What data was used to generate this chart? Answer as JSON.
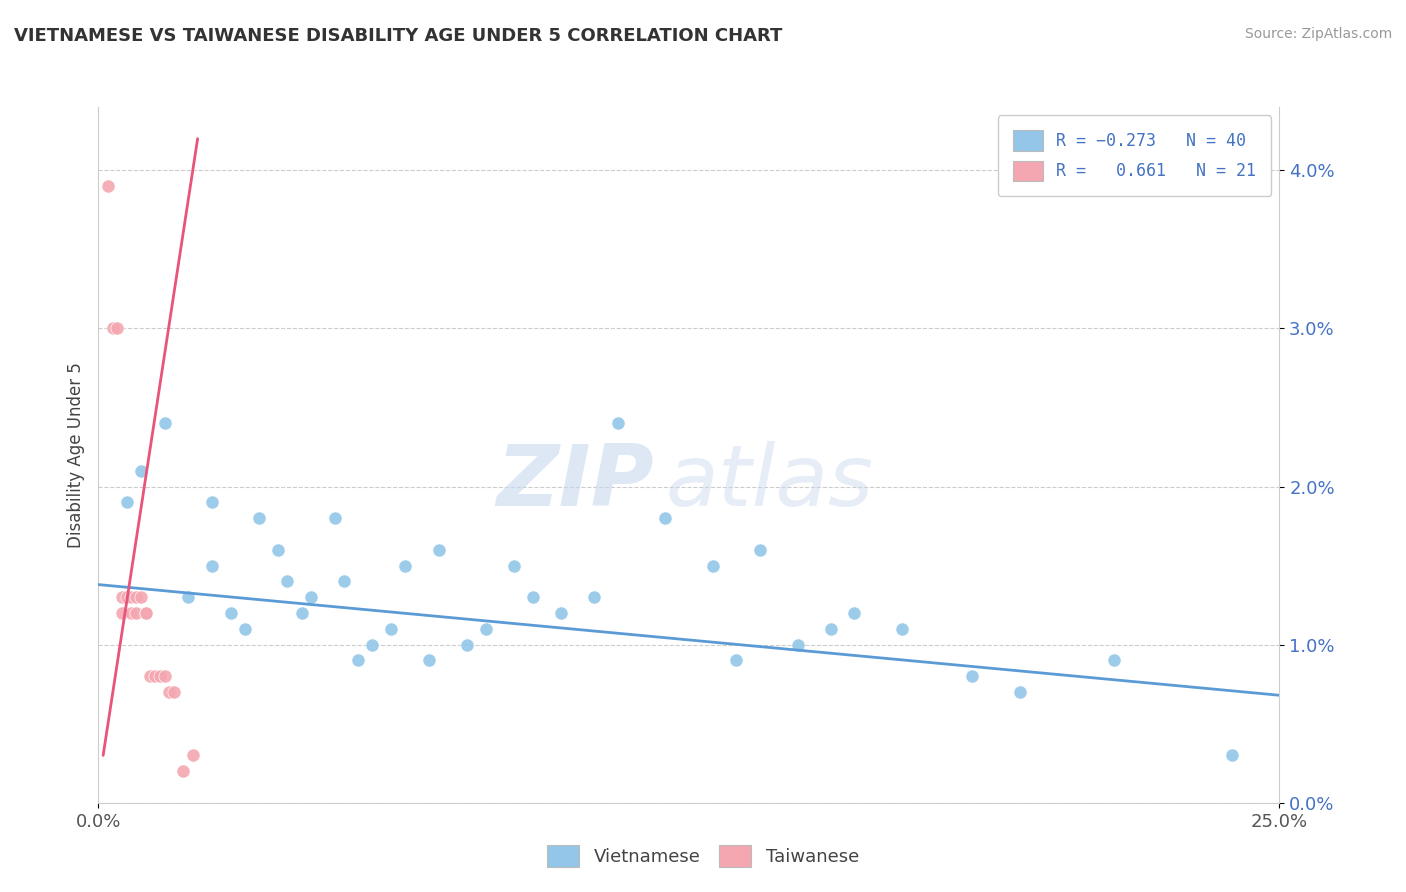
{
  "title": "VIETNAMESE VS TAIWANESE DISABILITY AGE UNDER 5 CORRELATION CHART",
  "source": "Source: ZipAtlas.com",
  "ylabel_label": "Disability Age Under 5",
  "xlim": [
    0.0,
    0.25
  ],
  "ylim": [
    0.0,
    0.044
  ],
  "ytick_vals": [
    0.0,
    0.01,
    0.02,
    0.03,
    0.04
  ],
  "ytick_labels": [
    "0.0%",
    "1.0%",
    "2.0%",
    "3.0%",
    "4.0%"
  ],
  "xtick_vals": [
    0.0,
    0.25
  ],
  "xtick_labels": [
    "0.0%",
    "25.0%"
  ],
  "blue_color": "#93c6e8",
  "pink_color": "#f4a7b0",
  "line_blue": "#5b9bd5",
  "line_pink": "#e8547a",
  "watermark_zip": "ZIP",
  "watermark_atlas": "atlas",
  "background": "#ffffff",
  "grid_color": "#cccccc",
  "vietnamese_scatter": [
    [
      0.006,
      0.019
    ],
    [
      0.009,
      0.021
    ],
    [
      0.014,
      0.024
    ],
    [
      0.019,
      0.013
    ],
    [
      0.024,
      0.019
    ],
    [
      0.024,
      0.015
    ],
    [
      0.028,
      0.012
    ],
    [
      0.031,
      0.011
    ],
    [
      0.034,
      0.018
    ],
    [
      0.038,
      0.016
    ],
    [
      0.04,
      0.014
    ],
    [
      0.043,
      0.012
    ],
    [
      0.045,
      0.013
    ],
    [
      0.05,
      0.018
    ],
    [
      0.052,
      0.014
    ],
    [
      0.055,
      0.009
    ],
    [
      0.058,
      0.01
    ],
    [
      0.062,
      0.011
    ],
    [
      0.065,
      0.015
    ],
    [
      0.07,
      0.009
    ],
    [
      0.072,
      0.016
    ],
    [
      0.078,
      0.01
    ],
    [
      0.082,
      0.011
    ],
    [
      0.088,
      0.015
    ],
    [
      0.092,
      0.013
    ],
    [
      0.098,
      0.012
    ],
    [
      0.105,
      0.013
    ],
    [
      0.11,
      0.024
    ],
    [
      0.12,
      0.018
    ],
    [
      0.13,
      0.015
    ],
    [
      0.135,
      0.009
    ],
    [
      0.14,
      0.016
    ],
    [
      0.148,
      0.01
    ],
    [
      0.155,
      0.011
    ],
    [
      0.16,
      0.012
    ],
    [
      0.17,
      0.011
    ],
    [
      0.185,
      0.008
    ],
    [
      0.195,
      0.007
    ],
    [
      0.215,
      0.009
    ],
    [
      0.24,
      0.003
    ]
  ],
  "taiwanese_scatter": [
    [
      0.002,
      0.039
    ],
    [
      0.003,
      0.03
    ],
    [
      0.004,
      0.03
    ],
    [
      0.005,
      0.013
    ],
    [
      0.005,
      0.012
    ],
    [
      0.006,
      0.013
    ],
    [
      0.007,
      0.013
    ],
    [
      0.007,
      0.012
    ],
    [
      0.008,
      0.013
    ],
    [
      0.008,
      0.012
    ],
    [
      0.009,
      0.013
    ],
    [
      0.01,
      0.012
    ],
    [
      0.01,
      0.012
    ],
    [
      0.011,
      0.008
    ],
    [
      0.012,
      0.008
    ],
    [
      0.013,
      0.008
    ],
    [
      0.014,
      0.008
    ],
    [
      0.015,
      0.007
    ],
    [
      0.016,
      0.007
    ],
    [
      0.018,
      0.002
    ],
    [
      0.02,
      0.003
    ]
  ],
  "viet_trendline_x": [
    0.0,
    0.25
  ],
  "viet_trendline_y": [
    0.0138,
    0.0068
  ],
  "taiw_trendline_x": [
    0.001,
    0.021
  ],
  "taiw_trendline_y": [
    0.003,
    0.042
  ]
}
